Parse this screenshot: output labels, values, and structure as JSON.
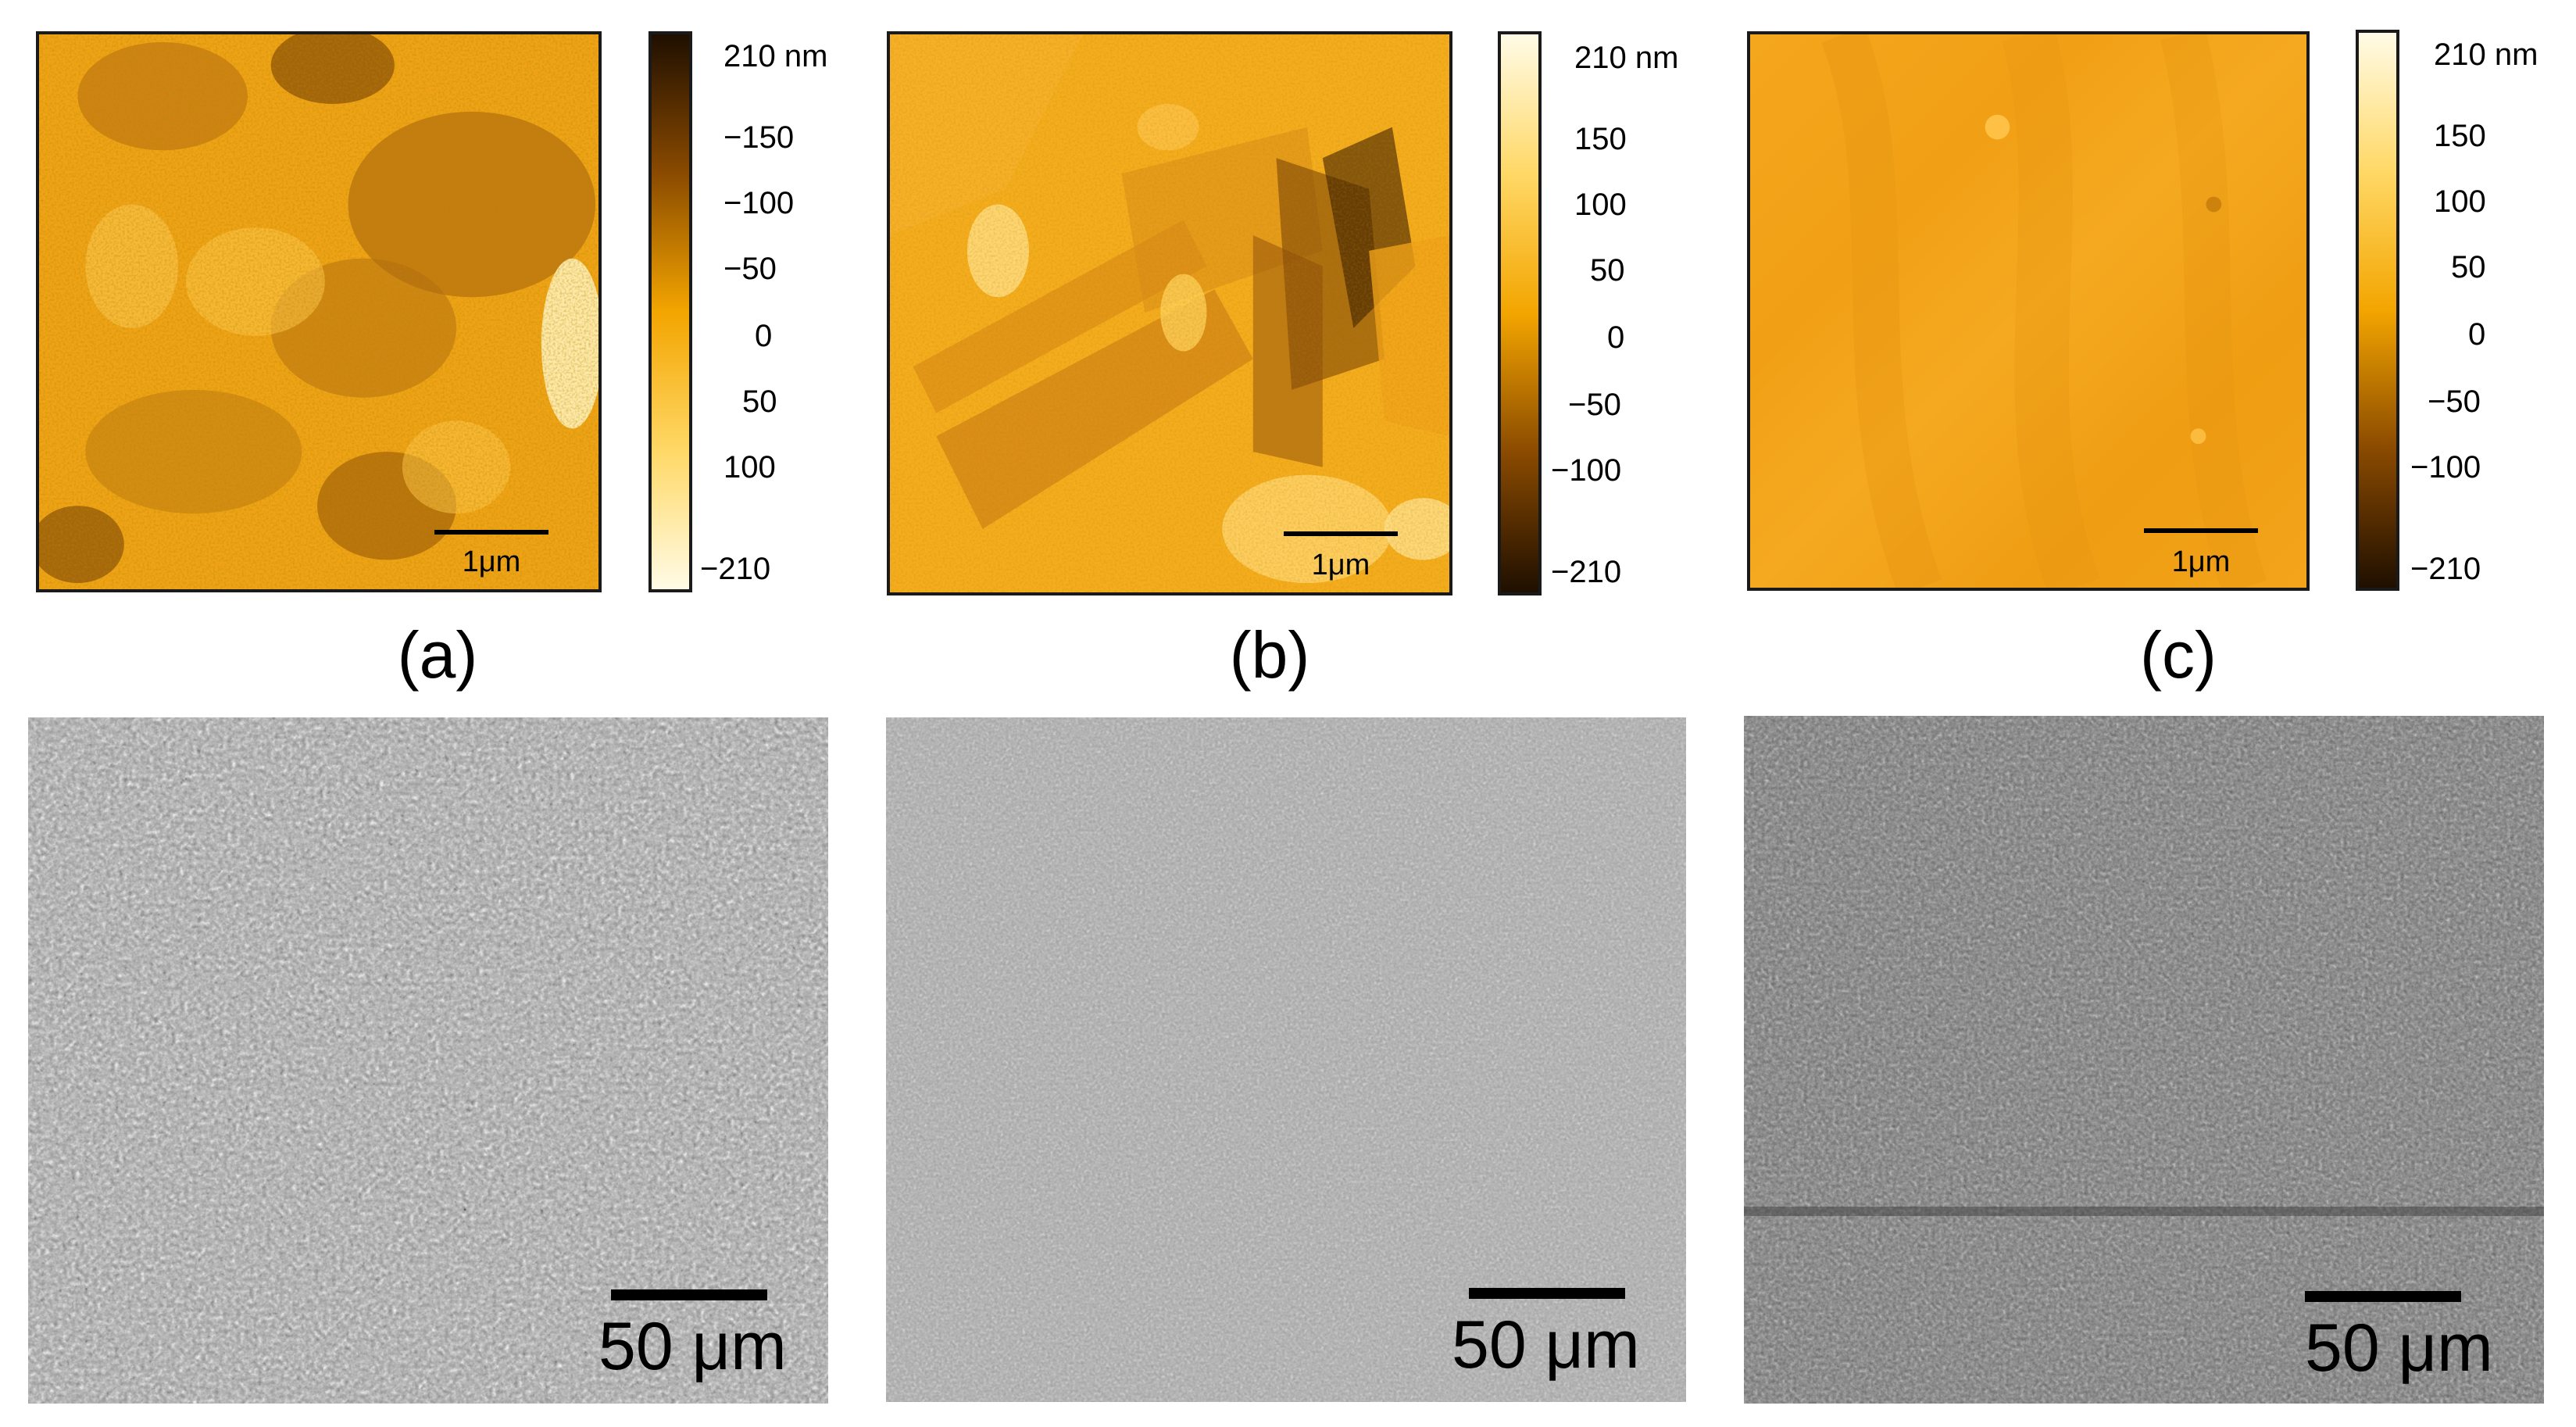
{
  "afm_panels": [
    {
      "label": "(a)",
      "scale_label": "1μm",
      "colorbar_direction": "dark-top",
      "colorbar_ticks": [
        "210 nm",
        "−150",
        "−100",
        "−50",
        "0",
        "50",
        "100",
        "−210"
      ]
    },
    {
      "label": "(b)",
      "scale_label": "1μm",
      "colorbar_direction": "light-top",
      "colorbar_ticks": [
        "210 nm",
        "150",
        "100",
        "50",
        "0",
        "−50",
        "−100",
        "−210"
      ]
    },
    {
      "label": "(c)",
      "scale_label": "1μm",
      "colorbar_direction": "light-top",
      "colorbar_ticks": [
        "210 nm",
        "150",
        "100",
        "50",
        "0",
        "−50",
        "−100",
        "−210"
      ]
    }
  ],
  "sem_panels": [
    {
      "scale_label": "50 μm",
      "tone": "light-rough"
    },
    {
      "scale_label": "50 μm",
      "tone": "mid-smooth"
    },
    {
      "scale_label": "50 μm",
      "tone": "dark-fine"
    }
  ],
  "colors": {
    "afm_dark": "#1f0f00",
    "afm_mid": "#f3a500",
    "afm_light": "#fffbe6"
  }
}
